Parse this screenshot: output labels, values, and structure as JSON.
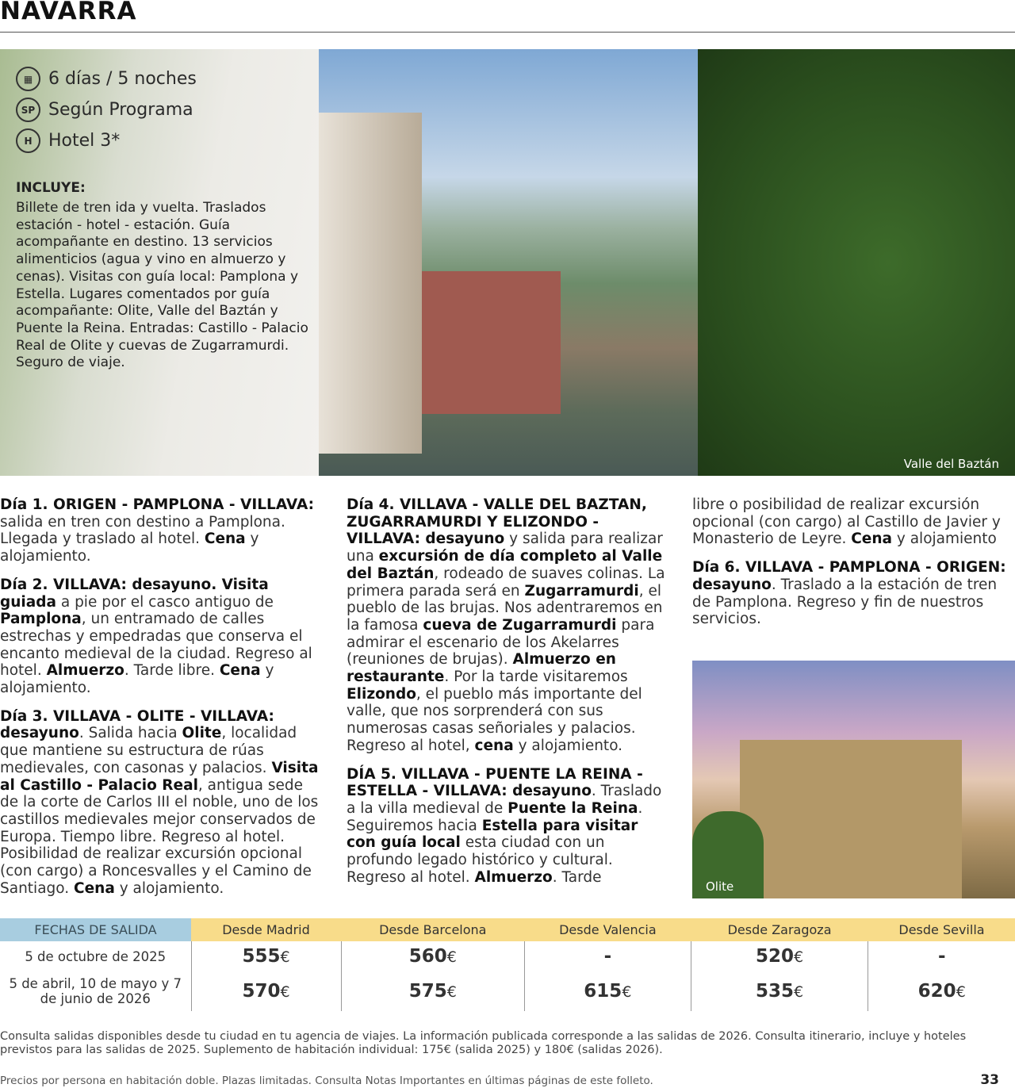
{
  "header": {
    "title": "NAVARRA"
  },
  "features": [
    {
      "icon": "calendar-icon",
      "symbol": "▦",
      "label": "6 días / 5 noches"
    },
    {
      "icon": "sp-icon",
      "symbol": "SP",
      "label": "Según Programa"
    },
    {
      "icon": "hotel-icon",
      "symbol": "H",
      "label": "Hotel 3*"
    }
  ],
  "includes": {
    "heading": "INCLUYE:",
    "text": "Billete de tren ida y vuelta. Traslados estación - hotel - estación. Guía acompañante en destino. 13 servicios alimenticios (agua y vino en almuerzo y cenas). Visitas con guía local: Pamplona y Estella. Lugares comentados por guía acompañante: Olite, Valle del Baztán y Puente la Reina. Entradas: Castillo - Palacio Real de Olite y cuevas de Zugarramurdi. Seguro de viaje."
  },
  "photos": {
    "main_caption": "Valle del Baztán",
    "olite_caption": "Olite"
  },
  "itinerary": {
    "col1": [
      [
        [
          "Día 1. ORIGEN - PAMPLONA - VILLAVA:",
          1
        ],
        [
          " salida en tren con destino a Pamplona. Llegada y traslado al hotel. ",
          0
        ],
        [
          "Cena",
          1
        ],
        [
          " y alojamiento.",
          0
        ]
      ],
      [
        [
          "Día 2. VILLAVA: desayuno. Visita guiada",
          1
        ],
        [
          " a pie por el casco antiguo de ",
          0
        ],
        [
          "Pamplona",
          1
        ],
        [
          ", un entramado de calles estrechas y empedradas que conserva el encanto medieval de la ciudad. Regreso al hotel. ",
          0
        ],
        [
          "Almuerzo",
          1
        ],
        [
          ". Tarde libre. ",
          0
        ],
        [
          "Cena",
          1
        ],
        [
          " y alojamiento.",
          0
        ]
      ],
      [
        [
          "Día 3. VILLAVA - OLITE - VILLAVA: desayuno",
          1
        ],
        [
          ". Salida hacia ",
          0
        ],
        [
          "Olite",
          1
        ],
        [
          ", localidad que mantiene su estructura de rúas medievales, con casonas y palacios. ",
          0
        ],
        [
          "Visita al Castillo - Palacio Real",
          1
        ],
        [
          ", antigua sede de la corte de Carlos III el noble, uno de los castillos medievales mejor conservados de Europa. Tiempo libre. Regreso al hotel. Posibilidad de realizar excursión opcional (con cargo) a Roncesvalles y el Camino de Santiago. ",
          0
        ],
        [
          "Cena",
          1
        ],
        [
          " y alojamiento.",
          0
        ]
      ]
    ],
    "col2": [
      [
        [
          "Día 4. VILLAVA - VALLE DEL BAZTAN, ZUGARRAMURDI Y ELIZONDO - VILLAVA: desayuno",
          1
        ],
        [
          " y salida para realizar una ",
          0
        ],
        [
          "excursión de día completo al Valle del Baztán",
          1
        ],
        [
          ", rodeado de suaves colinas. La primera parada será en ",
          0
        ],
        [
          "Zugarramurdi",
          1
        ],
        [
          ", el pueblo de las brujas. Nos adentraremos en la famosa ",
          0
        ],
        [
          "cueva de Zugarramurdi",
          1
        ],
        [
          " para admirar el escenario de los Akelarres (reuniones de brujas). ",
          0
        ],
        [
          "Almuerzo en restaurante",
          1
        ],
        [
          ". Por la tarde visitaremos ",
          0
        ],
        [
          "Elizondo",
          1
        ],
        [
          ", el pueblo más importante del valle, que nos sorprenderá con sus numerosas casas señoriales y palacios. Regreso al hotel, ",
          0
        ],
        [
          "cena",
          1
        ],
        [
          " y alojamiento.",
          0
        ]
      ],
      [
        [
          "DÍA 5. VILLAVA - PUENTE LA REINA - ESTELLA - VILLAVA: desayuno",
          1
        ],
        [
          ". Traslado a la villa medieval de ",
          0
        ],
        [
          "Puente la Reina",
          1
        ],
        [
          ". Seguiremos hacia ",
          0
        ],
        [
          "Estella para visitar con guía local",
          1
        ],
        [
          " esta ciudad con un profundo legado histórico y cultural. Regreso al hotel. ",
          0
        ],
        [
          "Almuerzo",
          1
        ],
        [
          ". Tarde",
          0
        ]
      ]
    ],
    "col3": [
      [
        [
          "libre o posibilidad de realizar excursión opcional (con cargo) al Castillo de Javier y Monasterio de Leyre. ",
          0
        ],
        [
          "Cena",
          1
        ],
        [
          " y alojamiento",
          0
        ]
      ],
      [
        [
          "Día 6. VILLAVA - PAMPLONA - ORIGEN: desayuno",
          1
        ],
        [
          ". Traslado a la estación de tren de Pamplona. Regreso y fin de nuestros servicios.",
          0
        ]
      ]
    ]
  },
  "prices": {
    "headers": [
      "FECHAS DE SALIDA",
      "Desde Madrid",
      "Desde Barcelona",
      "Desde Valencia",
      "Desde Zaragoza",
      "Desde Sevilla"
    ],
    "rows": [
      {
        "date": "5 de octubre de 2025",
        "values": [
          "555",
          "560",
          "-",
          "520",
          "-"
        ]
      },
      {
        "date": "5 de abril, 10 de mayo y 7 de junio de 2026",
        "values": [
          "570",
          "575",
          "615",
          "535",
          "620"
        ]
      }
    ],
    "currency": "€"
  },
  "note": "Consulta salidas disponibles desde tu ciudad en tu agencia de viajes. La información publicada corresponde a las salidas de 2026. Consulta itinerario, incluye y hoteles previstos para las salidas de 2025. Suplemento de habitación individual: 175€ (salida 2025) y 180€ (salidas 2026).",
  "footer": "Precios por persona en habitación doble. Plazas limitadas. Consulta Notas Importantes en últimas páginas de este folleto.",
  "page_number": "33",
  "colors": {
    "dates_header": "#a8cde0",
    "origin_header": "#f8dc8a"
  }
}
